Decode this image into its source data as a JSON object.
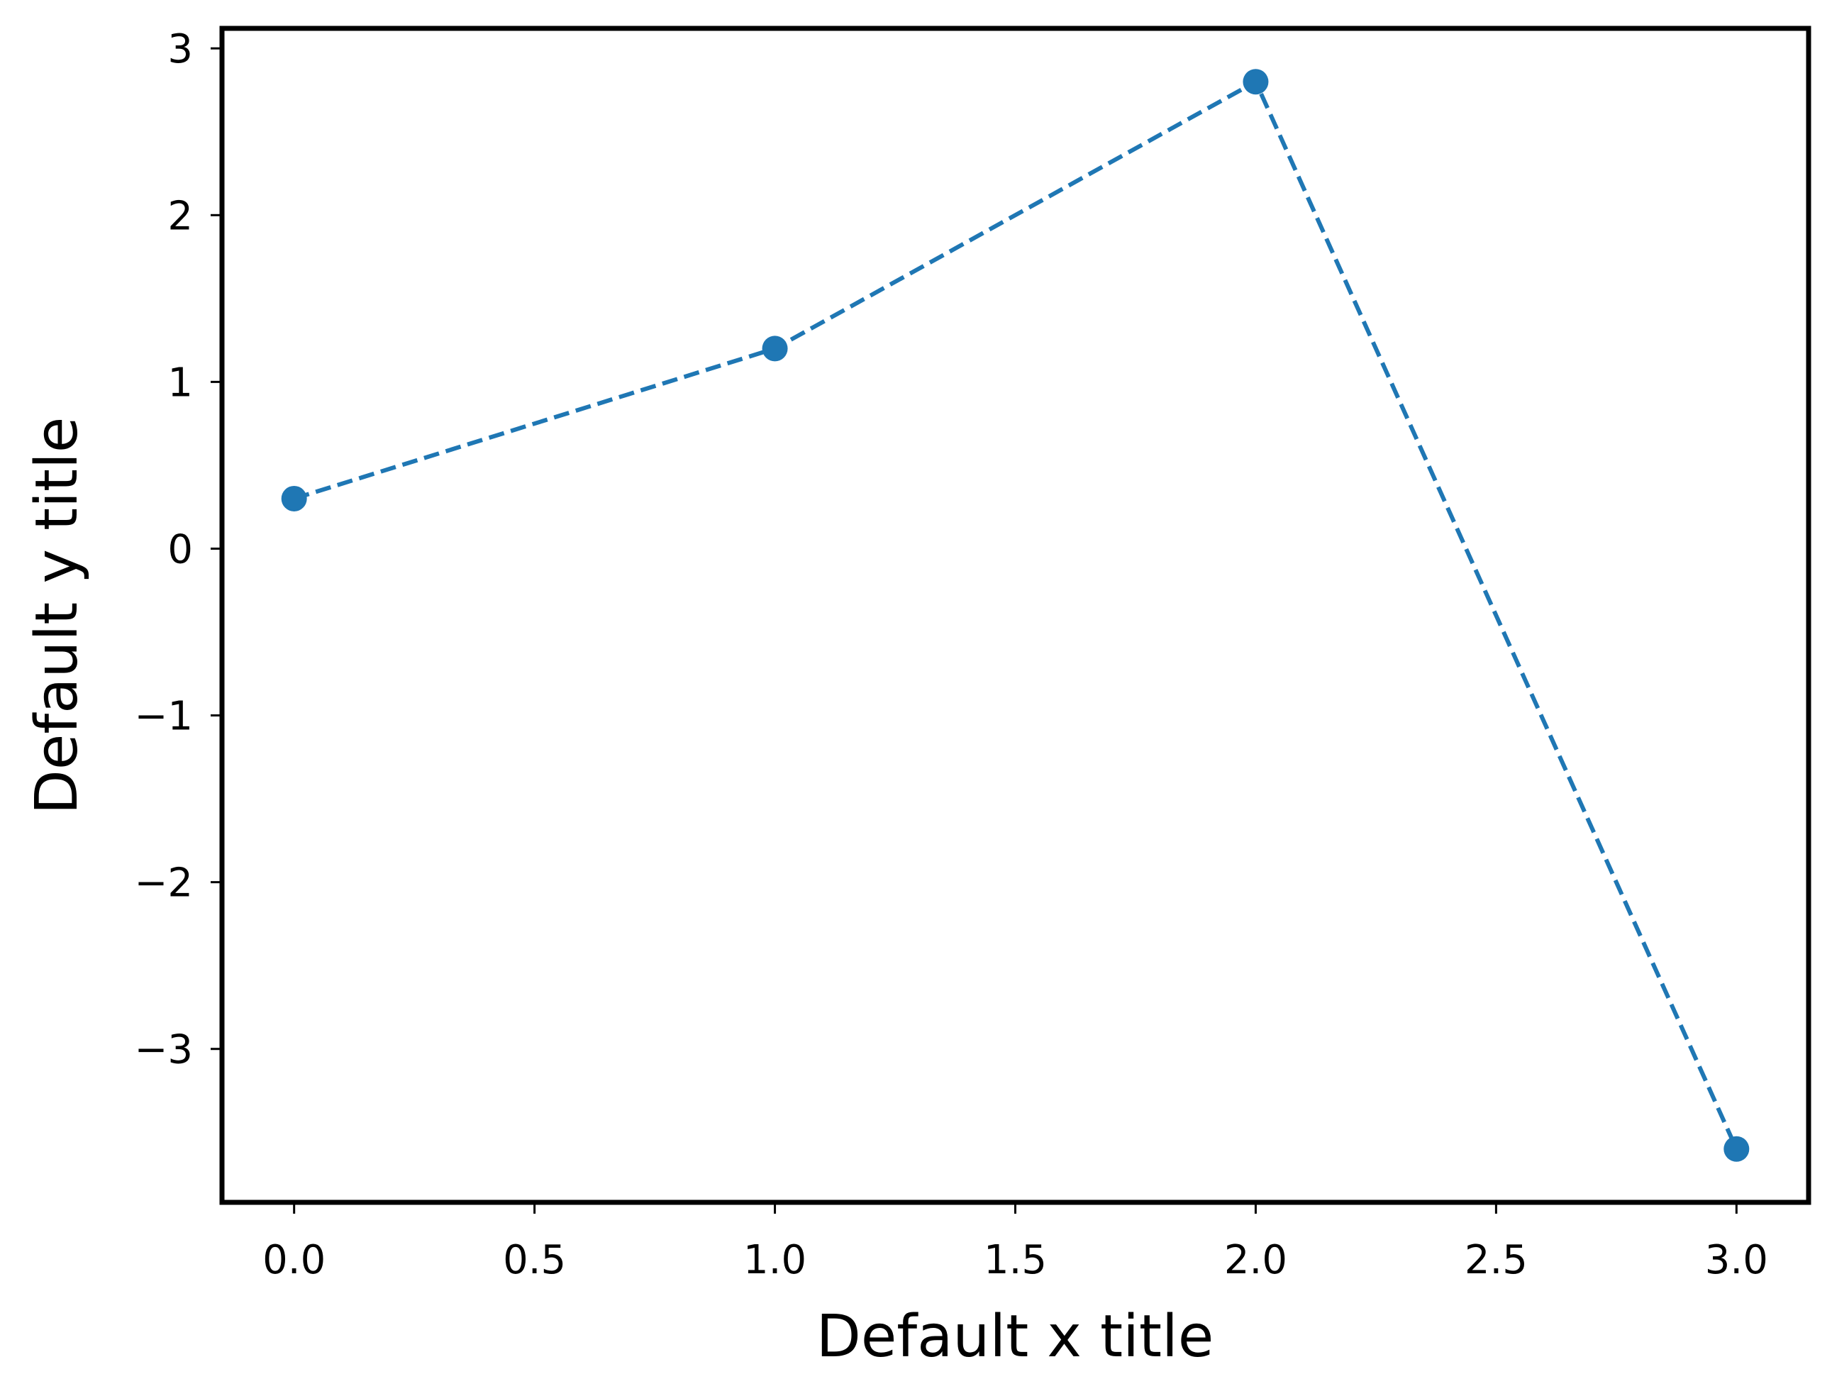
{
  "chart_data": {
    "type": "line",
    "title": "",
    "xlabel": "Default x title",
    "ylabel": "Default y title",
    "xlim": [
      -0.15,
      3.15
    ],
    "ylim": [
      -3.92,
      3.12
    ],
    "x_ticks": [
      0.0,
      0.5,
      1.0,
      1.5,
      2.0,
      2.5,
      3.0
    ],
    "x_tick_labels": [
      "0.0",
      "0.5",
      "1.0",
      "1.5",
      "2.0",
      "2.5",
      "3.0"
    ],
    "y_ticks": [
      -3,
      -2,
      -1,
      0,
      1,
      2,
      3
    ],
    "y_tick_labels": [
      "−3",
      "−2",
      "−1",
      "0",
      "1",
      "2",
      "3"
    ],
    "grid": false,
    "series": [
      {
        "x": [
          0,
          1,
          2,
          3
        ],
        "y": [
          0.3,
          1.2,
          2.8,
          -3.6
        ],
        "color": "#1f77b4",
        "line_style": "dashed",
        "marker": "circle"
      }
    ]
  }
}
